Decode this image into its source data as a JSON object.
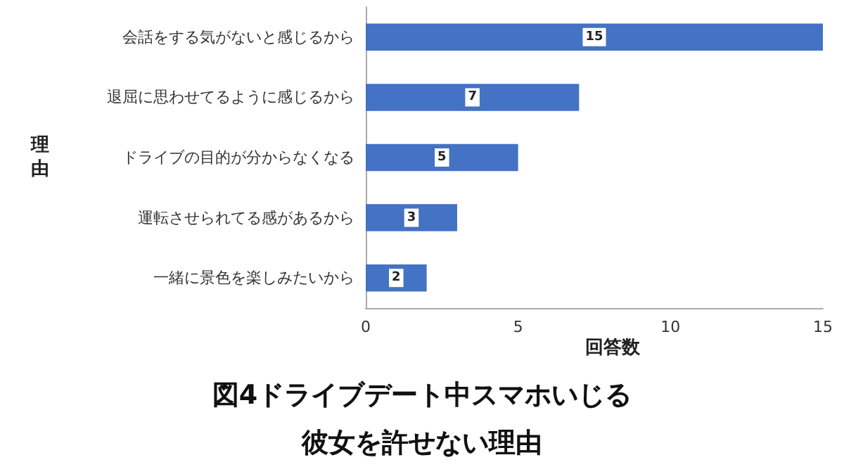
{
  "chart_data": {
    "type": "bar",
    "orientation": "horizontal",
    "title": "図4ドライブデート中スマホいじる彼女を許せない理由",
    "xlabel": "回答数",
    "ylabel": "理由",
    "categories": [
      "会話をする気がないと感じるから",
      "退屈に思わせてるように感じるから",
      "ドライブの目的が分からなくなる",
      "運転させられてる感があるから",
      "一緒に景色を楽しみたいから"
    ],
    "values": [
      15,
      7,
      5,
      3,
      2
    ],
    "color": "#4472c4",
    "xlim": [
      0,
      15
    ],
    "xticks": [
      0,
      5,
      10,
      15
    ],
    "data_labels": true,
    "grid": false
  }
}
